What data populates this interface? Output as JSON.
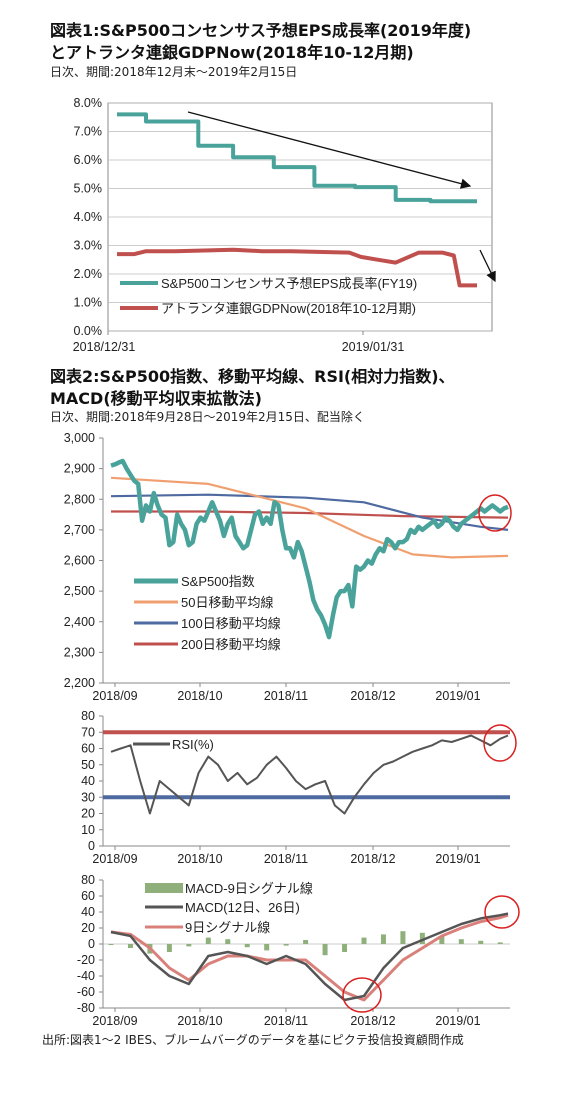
{
  "chart1": {
    "title1": "図表1:S&P500コンセンサス予想EPS成長率(2019年度)",
    "title2": "とアトランタ連銀GDPNow(2018年10-12月期)",
    "subtitle": "日次、期間:2018年12月末～2019年2月15日"
  },
  "chart2": {
    "title1": "図表2:S&P500指数、移動平均線、RSI(相対力指数)、",
    "title2": "MACD(移動平均収束拡散法)",
    "subtitle": "日次、期間:2018年9月28日～2019年2月15日、配当除く"
  },
  "source_note": "出所:図表1～2 IBES、ブルームバーグのデータを基にピクテ投信投資顧問作成",
  "chart_data": [
    {
      "type": "line",
      "yticks": [
        "0.0%",
        "1.0%",
        "2.0%",
        "3.0%",
        "4.0%",
        "5.0%",
        "6.0%",
        "7.0%",
        "8.0%"
      ],
      "xticks": [
        "2018/12/31",
        "2019/01/31"
      ],
      "ylim": [
        0,
        8
      ],
      "grid": true,
      "legend_position": "lower-left",
      "series": [
        {
          "name": "S&P500コンセンサス予想EPS成長率(FY19)",
          "color": "#4aa39b",
          "x": [
            0,
            5,
            5,
            14,
            14,
            20,
            20,
            27,
            27,
            34,
            34,
            41,
            41,
            48,
            48,
            54,
            54,
            62
          ],
          "values": [
            7.6,
            7.6,
            7.35,
            7.35,
            6.5,
            6.5,
            6.1,
            6.1,
            5.75,
            5.75,
            5.1,
            5.1,
            5.05,
            5.05,
            4.6,
            4.6,
            4.55,
            4.55
          ]
        },
        {
          "name": "アトランタ連銀GDPNow(2018年10-12月期)",
          "color": "#c0504d",
          "x": [
            0,
            3,
            5,
            10,
            20,
            25,
            30,
            40,
            42,
            45,
            48,
            52,
            56,
            58,
            59,
            62
          ],
          "values": [
            2.7,
            2.7,
            2.8,
            2.8,
            2.85,
            2.8,
            2.8,
            2.75,
            2.6,
            2.5,
            2.4,
            2.75,
            2.75,
            2.65,
            1.6,
            1.6
          ]
        }
      ],
      "annotations": [
        "trend-arrow-eps",
        "trend-arrow-gdp"
      ]
    },
    {
      "type": "line",
      "yticks": [
        "2,200",
        "2,300",
        "2,400",
        "2,500",
        "2,600",
        "2,700",
        "2,800",
        "2,900",
        "3,000"
      ],
      "xticks": [
        "2018/09",
        "2018/10",
        "2018/11",
        "2018/12",
        "2019/01"
      ],
      "ylim": [
        2200,
        3000
      ],
      "series": [
        {
          "name": "S&P500指数",
          "color": "#4aa39b",
          "x": [
            0,
            5,
            8,
            12,
            16,
            20,
            24,
            28,
            32,
            36,
            40,
            44,
            48,
            52,
            56,
            60,
            64,
            68,
            72,
            76,
            80,
            84,
            88,
            92,
            96,
            100,
            104,
            108,
            112,
            116,
            120,
            124,
            128,
            132,
            136,
            140,
            144,
            148,
            152,
            156,
            160,
            164,
            168,
            172,
            176,
            180,
            184,
            188,
            192,
            196,
            200,
            204,
            208,
            212,
            216,
            220,
            224,
            228,
            232,
            236,
            240,
            244,
            248,
            252,
            256,
            260,
            264,
            268,
            272,
            276,
            280,
            284,
            288,
            292,
            296,
            300,
            304,
            308,
            312,
            316,
            320,
            324,
            328,
            332,
            336,
            340,
            344,
            348,
            352,
            356,
            360,
            364,
            368,
            372,
            376,
            380,
            384,
            388,
            392,
            396,
            400,
            404,
            408
          ],
          "values": [
            2910,
            2915,
            2920,
            2925,
            2900,
            2880,
            2860,
            2850,
            2730,
            2780,
            2760,
            2820,
            2780,
            2750,
            2740,
            2650,
            2660,
            2750,
            2720,
            2700,
            2650,
            2660,
            2720,
            2740,
            2730,
            2760,
            2790,
            2760,
            2730,
            2680,
            2720,
            2740,
            2680,
            2660,
            2640,
            2650,
            2700,
            2750,
            2760,
            2720,
            2740,
            2720,
            2790,
            2780,
            2700,
            2640,
            2640,
            2610,
            2660,
            2630,
            2580,
            2530,
            2470,
            2440,
            2420,
            2390,
            2350,
            2420,
            2480,
            2500,
            2500,
            2520,
            2450,
            2580,
            2570,
            2580,
            2600,
            2590,
            2620,
            2640,
            2630,
            2670,
            2660,
            2640,
            2660,
            2660,
            2670,
            2700,
            2690,
            2710,
            2700,
            2710,
            2720,
            2730,
            2710,
            2720,
            2740,
            2730,
            2710,
            2700,
            2720,
            2730,
            2740,
            2750,
            2760,
            2770,
            2760,
            2770,
            2780,
            2770,
            2760,
            2770,
            2775
          ]
        },
        {
          "name": "50日移動平均線",
          "color": "#f0a070",
          "x": [
            0,
            100,
            200,
            260,
            310,
            350,
            408
          ],
          "values": [
            2870,
            2850,
            2770,
            2680,
            2620,
            2610,
            2615
          ]
        },
        {
          "name": "100日移動平均線",
          "color": "#4f6aa0",
          "x": [
            0,
            100,
            200,
            260,
            320,
            380,
            408
          ],
          "values": [
            2810,
            2815,
            2805,
            2790,
            2740,
            2710,
            2700
          ]
        },
        {
          "name": "200日移動平均線",
          "color": "#c0504d",
          "x": [
            0,
            100,
            200,
            300,
            408
          ],
          "values": [
            2760,
            2760,
            2755,
            2745,
            2740
          ]
        }
      ]
    },
    {
      "type": "line",
      "yticks": [
        "0",
        "10",
        "20",
        "30",
        "40",
        "50",
        "60",
        "70",
        "80"
      ],
      "xticks": [
        "2018/09",
        "2018/10",
        "2018/11",
        "2018/12",
        "2019/01"
      ],
      "ylim": [
        0,
        80
      ],
      "reference_lines": [
        70,
        30
      ],
      "series": [
        {
          "name": "RSI(%)",
          "color": "#555555",
          "x": [
            0,
            10,
            20,
            30,
            40,
            50,
            60,
            70,
            80,
            90,
            100,
            110,
            120,
            130,
            140,
            150,
            160,
            170,
            180,
            190,
            200,
            210,
            220,
            230,
            240,
            250,
            260,
            270,
            280,
            290,
            300,
            310,
            320,
            330,
            340,
            350,
            360,
            370,
            380,
            390,
            400,
            408
          ],
          "values": [
            58,
            60,
            62,
            40,
            20,
            40,
            35,
            30,
            25,
            45,
            55,
            50,
            40,
            45,
            38,
            42,
            50,
            55,
            48,
            40,
            35,
            38,
            40,
            25,
            20,
            30,
            38,
            45,
            50,
            52,
            55,
            58,
            60,
            62,
            65,
            64,
            66,
            68,
            65,
            62,
            66,
            68
          ]
        }
      ]
    },
    {
      "type": "bar",
      "yticks": [
        "-80",
        "-60",
        "-40",
        "-20",
        "0",
        "20",
        "40",
        "60",
        "80"
      ],
      "xticks": [
        "2018/09",
        "2018/10",
        "2018/11",
        "2018/12",
        "2019/01"
      ],
      "ylim": [
        -80,
        80
      ],
      "series": [
        {
          "name": "MACD-9日シグナル線",
          "color": "#8fb07a",
          "kind": "bar",
          "x": [
            0,
            20,
            40,
            60,
            80,
            100,
            120,
            140,
            160,
            180,
            200,
            220,
            240,
            260,
            280,
            300,
            320,
            340,
            360,
            380,
            400
          ],
          "values": [
            0,
            -5,
            -12,
            -10,
            -3,
            8,
            6,
            -4,
            -8,
            -2,
            5,
            -14,
            -10,
            8,
            12,
            16,
            14,
            10,
            6,
            4,
            2
          ]
        },
        {
          "name": "MACD(12日、26日)",
          "color": "#555555",
          "x": [
            0,
            20,
            40,
            60,
            80,
            100,
            120,
            140,
            160,
            180,
            200,
            220,
            240,
            260,
            280,
            300,
            320,
            340,
            360,
            380,
            400,
            408
          ],
          "values": [
            15,
            10,
            -20,
            -40,
            -50,
            -15,
            -10,
            -15,
            -25,
            -15,
            -25,
            -50,
            -70,
            -65,
            -30,
            -5,
            5,
            15,
            25,
            32,
            36,
            38
          ]
        },
        {
          "name": "9日シグナル線",
          "color": "#d9807a",
          "x": [
            0,
            20,
            40,
            60,
            80,
            100,
            120,
            140,
            160,
            180,
            200,
            220,
            240,
            260,
            280,
            300,
            320,
            340,
            360,
            380,
            400,
            408
          ],
          "values": [
            15,
            12,
            -5,
            -30,
            -45,
            -25,
            -15,
            -15,
            -20,
            -20,
            -20,
            -40,
            -60,
            -70,
            -45,
            -20,
            -5,
            10,
            20,
            28,
            33,
            36
          ]
        }
      ]
    }
  ]
}
